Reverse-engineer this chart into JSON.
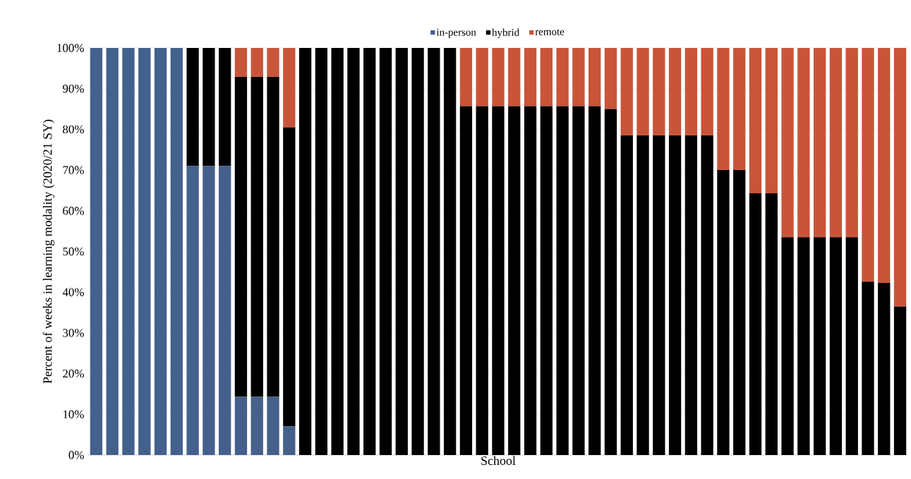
{
  "chart_data": {
    "type": "bar",
    "stacked": true,
    "xlabel": "School",
    "ylabel": "Percent of weeks in learning modality (2020/21  SY)",
    "categories": [
      null,
      null,
      null,
      null,
      null,
      null,
      null,
      null,
      null,
      null,
      null,
      null,
      null,
      null,
      null,
      null,
      null,
      null,
      null,
      null,
      null,
      null,
      null,
      null,
      null,
      null,
      null,
      null,
      null,
      null,
      null,
      null,
      null,
      null,
      null,
      null,
      null,
      null,
      null,
      null,
      null,
      null,
      null,
      null,
      null,
      null,
      null,
      null,
      null,
      null,
      null
    ],
    "series": [
      {
        "name": "in-person",
        "color": "#44618c",
        "values": [
          100,
          100,
          100,
          100,
          100,
          100,
          71,
          71,
          71,
          14.3,
          14.3,
          14.3,
          7,
          0,
          0,
          0,
          0,
          0,
          0,
          0,
          0,
          0,
          0,
          0,
          0,
          0,
          0,
          0,
          0,
          0,
          0,
          0,
          0,
          0,
          0,
          0,
          0,
          0,
          0,
          0,
          0,
          0,
          0,
          0,
          0,
          0,
          0,
          0,
          0,
          0,
          0
        ]
      },
      {
        "name": "hybrid",
        "color": "#000000",
        "values": [
          0,
          0,
          0,
          0,
          0,
          0,
          29,
          29,
          29,
          78.6,
          78.6,
          78.6,
          73.5,
          100,
          100,
          100,
          100,
          100,
          100,
          100,
          100,
          100,
          100,
          85.7,
          85.7,
          85.7,
          85.7,
          85.7,
          85.7,
          85.7,
          85.7,
          85.7,
          85,
          78.5,
          78.5,
          78.5,
          78.5,
          78.5,
          78.5,
          70,
          70,
          64.3,
          64.3,
          53.5,
          53.5,
          53.5,
          53.5,
          53.5,
          42.6,
          42.3,
          36.5
        ]
      },
      {
        "name": "remote",
        "color": "#c8553a",
        "values": [
          0,
          0,
          0,
          0,
          0,
          0,
          0,
          0,
          0,
          7.1,
          7.1,
          7.1,
          19.5,
          0,
          0,
          0,
          0,
          0,
          0,
          0,
          0,
          0,
          0,
          14.3,
          14.3,
          14.3,
          14.3,
          14.3,
          14.3,
          14.3,
          14.3,
          14.3,
          15,
          21.5,
          21.5,
          21.5,
          21.5,
          21.5,
          21.5,
          30,
          30,
          35.7,
          35.7,
          46.5,
          46.5,
          46.5,
          46.5,
          46.5,
          57.4,
          57.7,
          63.5
        ]
      }
    ],
    "ylim": [
      0,
      100
    ],
    "yticks": [
      {
        "value": 0,
        "label": "0%"
      },
      {
        "value": 10,
        "label": "10%"
      },
      {
        "value": 20,
        "label": "20%"
      },
      {
        "value": 30,
        "label": "30%"
      },
      {
        "value": 40,
        "label": "40%"
      },
      {
        "value": 50,
        "label": "50%"
      },
      {
        "value": 60,
        "label": "60%"
      },
      {
        "value": 70,
        "label": "70%"
      },
      {
        "value": 80,
        "label": "80%"
      },
      {
        "value": 90,
        "label": "90%"
      },
      {
        "value": 100,
        "label": "100%"
      }
    ],
    "grid": "y",
    "legend": "top"
  }
}
